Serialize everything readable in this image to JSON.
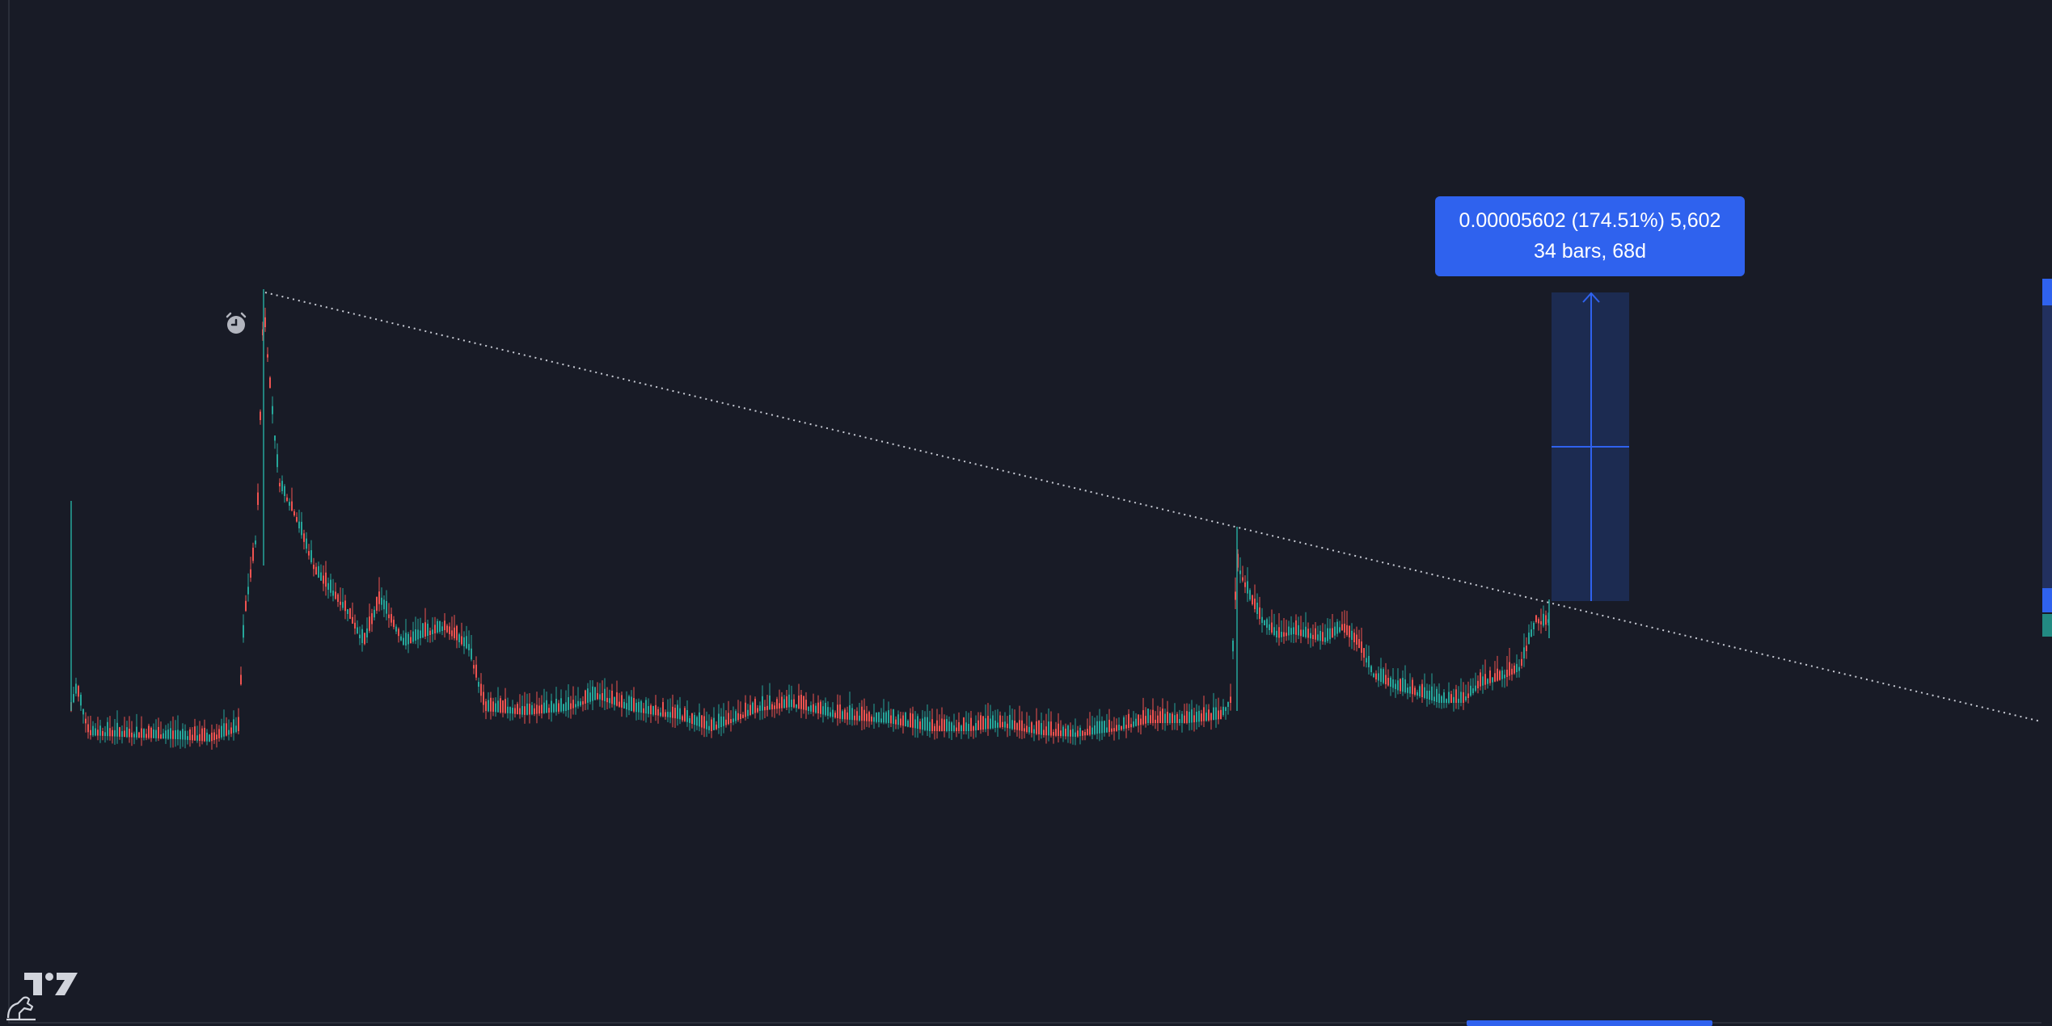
{
  "measure": {
    "line1": "0.00005602 (174.51%) 5,602",
    "line2": "34 bars, 68d"
  },
  "colors": {
    "background": "#181b26",
    "up": "#26a69a",
    "down": "#ef5350",
    "accent": "#2f62ee",
    "trendline": "#c8cbd4"
  },
  "icons": {
    "alarm": "alarm-clock-icon",
    "logo": "tradingview-logo-icon",
    "ruler": "measure-tool-icon"
  }
}
